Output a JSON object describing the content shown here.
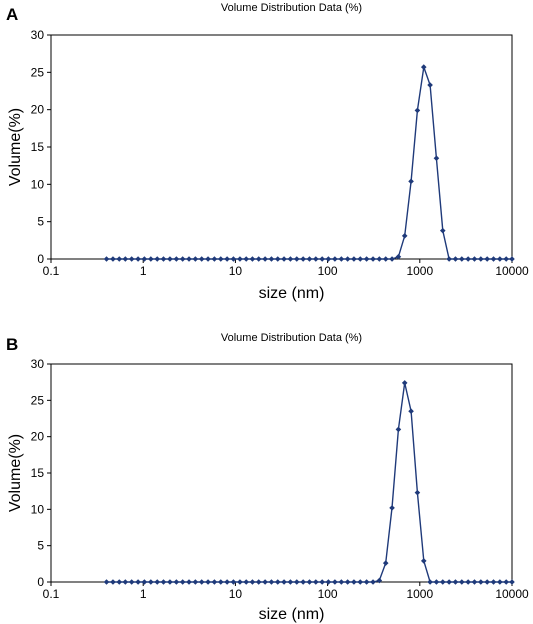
{
  "chart_data": [
    {
      "panel": "A",
      "type": "line",
      "title": "Volume Distribution Data (%)",
      "xlabel": "size (nm)",
      "ylabel": "Volume(%)",
      "xscale": "log",
      "xlim": [
        0.1,
        10000
      ],
      "ylim": [
        0,
        30
      ],
      "xticks": [
        "0.1",
        "1",
        "10",
        "100",
        "1000",
        "10000"
      ],
      "yticks": [
        "0",
        "5",
        "10",
        "15",
        "20",
        "25",
        "30"
      ],
      "grid": false,
      "legend": "none",
      "series_color": "#1f3a7a",
      "x": [
        0.4,
        0.47,
        0.55,
        0.64,
        0.75,
        0.88,
        1.03,
        1.21,
        1.42,
        1.66,
        1.95,
        2.29,
        2.68,
        3.14,
        3.68,
        4.31,
        5.05,
        5.92,
        6.94,
        8.13,
        9.52,
        11.2,
        13.1,
        15.3,
        17.9,
        21,
        24.6,
        28.8,
        33.7,
        39.5,
        46.3,
        54.3,
        63.6,
        74.5,
        87.3,
        102,
        120,
        141,
        165,
        193,
        226,
        265,
        311,
        364,
        427,
        500,
        586,
        686,
        804,
        942,
        1104,
        1293,
        1515,
        1775,
        2080,
        2437,
        2855,
        3345,
        3919,
        4591,
        5380,
        6303,
        7384,
        8651,
        10000
      ],
      "y": [
        0,
        0,
        0,
        0,
        0,
        0,
        0,
        0,
        0,
        0,
        0,
        0,
        0,
        0,
        0,
        0,
        0,
        0,
        0,
        0,
        0,
        0,
        0,
        0,
        0,
        0,
        0,
        0,
        0,
        0,
        0,
        0,
        0,
        0,
        0,
        0,
        0,
        0,
        0,
        0,
        0,
        0,
        0,
        0,
        0,
        0,
        0.3,
        3.1,
        10.4,
        19.9,
        25.7,
        23.3,
        13.5,
        3.8,
        0,
        0,
        0,
        0,
        0,
        0,
        0,
        0,
        0,
        0,
        0
      ]
    },
    {
      "panel": "B",
      "type": "line",
      "title": "Volume Distribution Data (%)",
      "xlabel": "size (nm)",
      "ylabel": "Volume(%)",
      "xscale": "log",
      "xlim": [
        0.1,
        10000
      ],
      "ylim": [
        0,
        30
      ],
      "xticks": [
        "0.1",
        "1",
        "10",
        "100",
        "1000",
        "10000"
      ],
      "yticks": [
        "0",
        "5",
        "10",
        "15",
        "20",
        "25",
        "30"
      ],
      "grid": false,
      "legend": "none",
      "series_color": "#1f3a7a",
      "x": [
        0.4,
        0.47,
        0.55,
        0.64,
        0.75,
        0.88,
        1.03,
        1.21,
        1.42,
        1.66,
        1.95,
        2.29,
        2.68,
        3.14,
        3.68,
        4.31,
        5.05,
        5.92,
        6.94,
        8.13,
        9.52,
        11.2,
        13.1,
        15.3,
        17.9,
        21,
        24.6,
        28.8,
        33.7,
        39.5,
        46.3,
        54.3,
        63.6,
        74.5,
        87.3,
        102,
        120,
        141,
        165,
        193,
        226,
        265,
        311,
        364,
        427,
        500,
        586,
        686,
        804,
        942,
        1104,
        1293,
        1515,
        1775,
        2080,
        2437,
        2855,
        3345,
        3919,
        4591,
        5380,
        6303,
        7384,
        8651,
        10000
      ],
      "y": [
        0,
        0,
        0,
        0,
        0,
        0,
        0,
        0,
        0,
        0,
        0,
        0,
        0,
        0,
        0,
        0,
        0,
        0,
        0,
        0,
        0,
        0,
        0,
        0,
        0,
        0,
        0,
        0,
        0,
        0,
        0,
        0,
        0,
        0,
        0,
        0,
        0,
        0,
        0,
        0,
        0,
        0,
        0,
        0.2,
        2.6,
        10.2,
        21.0,
        27.4,
        23.5,
        12.3,
        2.9,
        0,
        0,
        0,
        0,
        0,
        0,
        0,
        0,
        0,
        0,
        0,
        0,
        0,
        0
      ]
    }
  ]
}
